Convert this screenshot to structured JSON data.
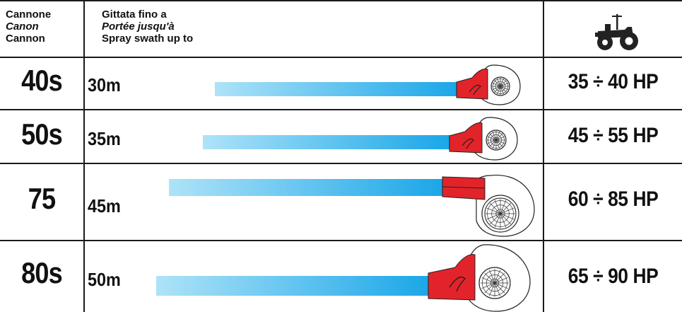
{
  "header": {
    "col1": [
      "Cannone",
      "Canon",
      "Cannon"
    ],
    "col2": [
      "Gittata fino a",
      "Portée jusqu'à",
      "Spray swath up to"
    ],
    "col3_icon": "tractor-icon"
  },
  "rows": [
    {
      "model": "40s",
      "range": "30m",
      "power": "35 ÷ 40 HP",
      "swath_m": 30
    },
    {
      "model": "50s",
      "range": "35m",
      "power": "45 ÷ 55 HP",
      "swath_m": 35
    },
    {
      "model": "75",
      "range": "45m",
      "power": "60 ÷ 85 HP",
      "swath_m": 45
    },
    {
      "model": "80s",
      "range": "50m",
      "power": "65 ÷ 90 HP",
      "swath_m": 50
    }
  ],
  "colors": {
    "beam_start": "#aee3f8",
    "beam_end": "#1aa6e8",
    "nozzle": "#e3232a",
    "lines": "#1a1a1a"
  }
}
